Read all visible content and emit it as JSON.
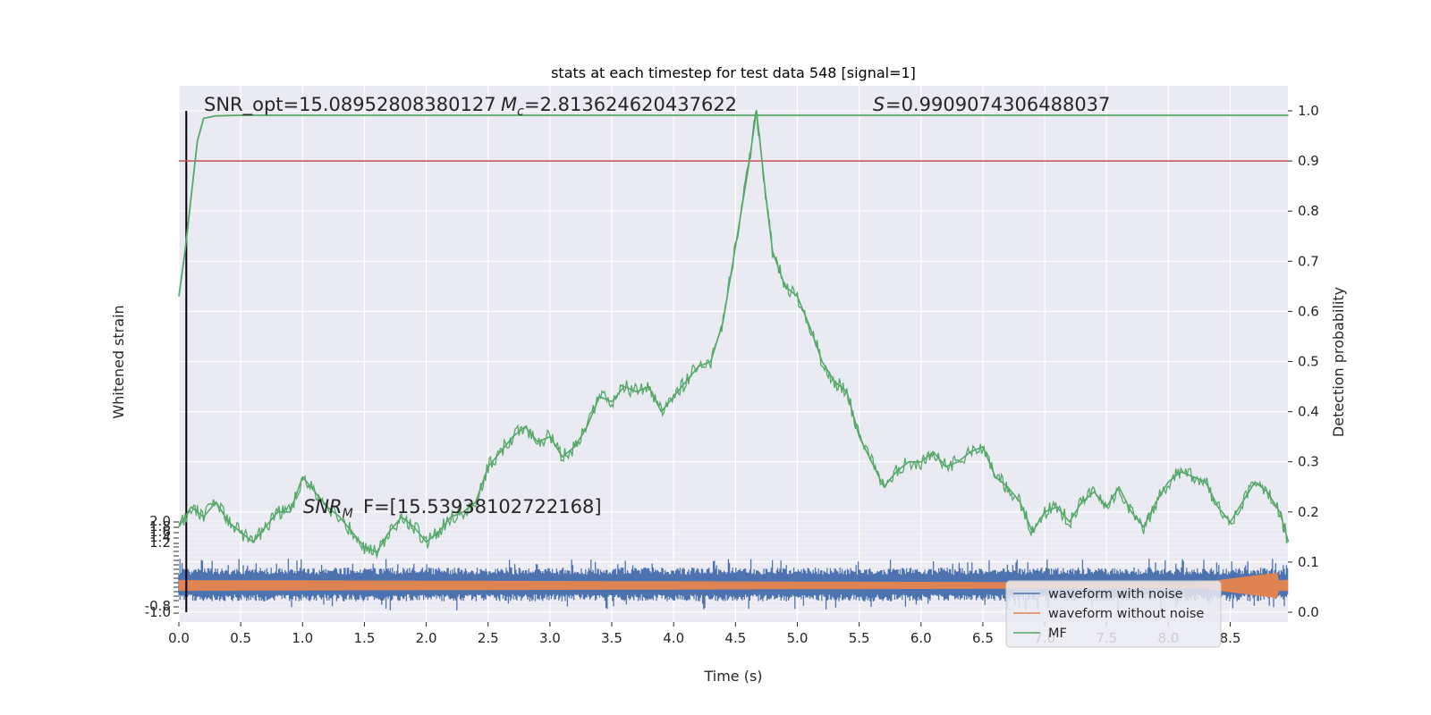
{
  "chart_data": {
    "type": "line",
    "title": "stats at each timestep for test data 548 [signal=1]",
    "xlabel": "Time (s)",
    "ylabel_left": "Whitened strain",
    "ylabel_right": "Detection probability",
    "xlim": [
      0.0,
      9.0
    ],
    "ylim_right": [
      -0.01,
      1.04
    ],
    "x_ticks": [
      "0.0",
      "0.5",
      "1.0",
      "1.5",
      "2.0",
      "2.5",
      "3.0",
      "3.5",
      "4.0",
      "4.5",
      "5.0",
      "5.5",
      "6.0",
      "6.5",
      "7.0",
      "7.5",
      "8.0",
      "8.5"
    ],
    "y_right_ticks": [
      "0.0",
      "0.1",
      "0.2",
      "0.3",
      "0.4",
      "0.5",
      "0.6",
      "0.7",
      "0.8",
      "0.9",
      "1.0"
    ],
    "y_left_ticks_top": [
      "2.0",
      "1.8",
      "1.6",
      "1.4",
      "1.2"
    ],
    "y_left_ticks_bottom": [
      "-0.8",
      "-1.0"
    ],
    "grid": true,
    "annotations": {
      "snr_opt_text": "SNR_opt=15.08952808380127",
      "mc_text": "=2.813624620437622",
      "s_text": "=0.9909074306488037",
      "snr_mf_text": "F=[15.53938102722168]"
    },
    "threshold": 0.9,
    "vline_x": 0.06,
    "legend": {
      "placement": "lower-right",
      "entries": [
        "waveform with noise",
        "waveform without noise",
        "MF"
      ]
    },
    "colors": {
      "waveform_with_noise": "#4c72b0",
      "waveform_without_noise": "#dd8452",
      "mf": "#55a868",
      "threshold": "#c44e52",
      "vline": "#000000",
      "background": "#eaeaf2",
      "grid": "#ffffff"
    },
    "series": [
      {
        "name": "MF",
        "x": [
          0.0,
          0.05,
          0.1,
          0.15,
          0.2,
          0.3,
          0.5,
          1.0,
          2.0,
          3.0,
          4.0,
          5.0,
          6.0,
          7.0,
          8.0,
          8.97
        ],
        "y": [
          0.63,
          0.72,
          0.83,
          0.94,
          0.985,
          0.99,
          0.991,
          0.991,
          0.991,
          0.991,
          0.991,
          0.991,
          0.991,
          0.991,
          0.991,
          0.991
        ]
      },
      {
        "name": "Detection probability",
        "x": [
          0.0,
          0.1,
          0.2,
          0.3,
          0.4,
          0.5,
          0.6,
          0.7,
          0.8,
          0.9,
          1.0,
          1.1,
          1.2,
          1.3,
          1.4,
          1.5,
          1.6,
          1.7,
          1.8,
          1.9,
          2.0,
          2.1,
          2.2,
          2.3,
          2.4,
          2.5,
          2.6,
          2.7,
          2.8,
          2.9,
          3.0,
          3.1,
          3.2,
          3.3,
          3.4,
          3.5,
          3.6,
          3.7,
          3.8,
          3.9,
          4.0,
          4.1,
          4.2,
          4.3,
          4.4,
          4.5,
          4.6,
          4.67,
          4.75,
          4.8,
          4.9,
          5.0,
          5.1,
          5.2,
          5.3,
          5.4,
          5.5,
          5.6,
          5.7,
          5.8,
          5.9,
          6.0,
          6.1,
          6.2,
          6.3,
          6.4,
          6.5,
          6.6,
          6.7,
          6.8,
          6.9,
          7.0,
          7.1,
          7.2,
          7.3,
          7.4,
          7.5,
          7.6,
          7.7,
          7.8,
          7.9,
          8.0,
          8.1,
          8.2,
          8.3,
          8.4,
          8.5,
          8.6,
          8.7,
          8.8,
          8.9,
          8.97
        ],
        "y": [
          0.17,
          0.21,
          0.19,
          0.22,
          0.18,
          0.16,
          0.14,
          0.17,
          0.2,
          0.2,
          0.27,
          0.24,
          0.21,
          0.19,
          0.16,
          0.13,
          0.12,
          0.16,
          0.19,
          0.17,
          0.14,
          0.16,
          0.19,
          0.2,
          0.22,
          0.29,
          0.32,
          0.35,
          0.37,
          0.34,
          0.35,
          0.31,
          0.33,
          0.37,
          0.43,
          0.42,
          0.45,
          0.44,
          0.45,
          0.4,
          0.43,
          0.46,
          0.49,
          0.5,
          0.58,
          0.73,
          0.88,
          1.0,
          0.82,
          0.72,
          0.65,
          0.63,
          0.57,
          0.5,
          0.46,
          0.44,
          0.35,
          0.3,
          0.25,
          0.28,
          0.3,
          0.3,
          0.32,
          0.29,
          0.3,
          0.32,
          0.33,
          0.27,
          0.25,
          0.22,
          0.16,
          0.2,
          0.21,
          0.18,
          0.22,
          0.24,
          0.21,
          0.25,
          0.2,
          0.17,
          0.22,
          0.26,
          0.28,
          0.27,
          0.26,
          0.21,
          0.18,
          0.22,
          0.26,
          0.24,
          0.2,
          0.14
        ]
      }
    ]
  }
}
